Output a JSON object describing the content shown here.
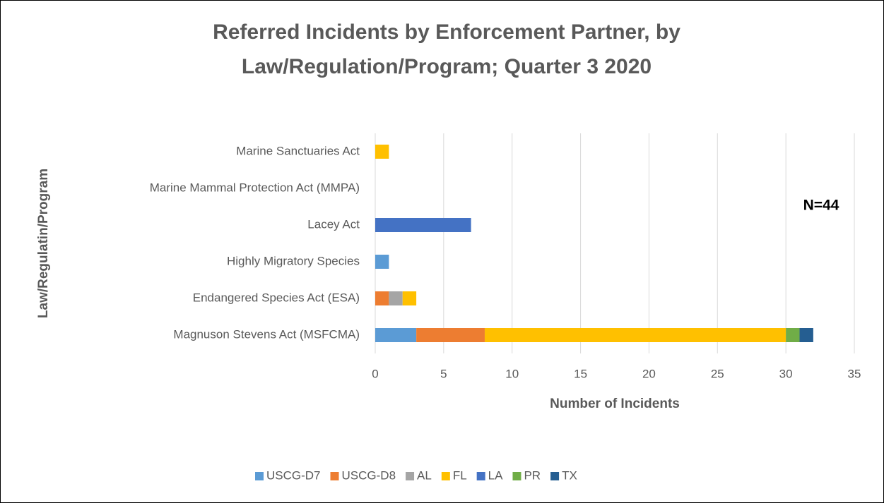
{
  "chart_data": {
    "type": "bar",
    "orientation": "horizontal",
    "stacked": true,
    "title": [
      "Referred Incidents by Enforcement Partner, by",
      "Law/Regulation/Program; Quarter 3 2020"
    ],
    "x_label": "Number of Incidents",
    "y_label": "Law/Regulatin/Program",
    "annotation": "N=44",
    "categories": [
      "Marine Sanctuaries Act",
      "Marine Mammal Protection Act (MMPA)",
      "Lacey Act",
      "Highly Migratory Species",
      "Endangered Species Act (ESA)",
      "Magnuson Stevens Act (MSFCMA)"
    ],
    "series": [
      {
        "name": "USCG-D7",
        "color": "#5b9bd5",
        "values": [
          0,
          0,
          0,
          1,
          0,
          3
        ]
      },
      {
        "name": "USCG-D8",
        "color": "#ed7d31",
        "values": [
          0,
          0,
          0,
          0,
          1,
          5
        ]
      },
      {
        "name": "AL",
        "color": "#a5a5a5",
        "values": [
          0,
          0,
          0,
          0,
          1,
          0
        ]
      },
      {
        "name": "FL",
        "color": "#ffc000",
        "values": [
          1,
          0,
          0,
          0,
          1,
          22
        ]
      },
      {
        "name": "LA",
        "color": "#4472c4",
        "values": [
          0,
          0,
          7,
          0,
          0,
          0
        ]
      },
      {
        "name": "PR",
        "color": "#70ad47",
        "values": [
          0,
          0,
          0,
          0,
          0,
          1
        ]
      },
      {
        "name": "TX",
        "color": "#255e91",
        "values": [
          0,
          0,
          0,
          0,
          0,
          1
        ]
      }
    ],
    "xlim": [
      0,
      35
    ],
    "xticks": [
      0,
      5,
      10,
      15,
      20,
      25,
      30,
      35
    ],
    "grid": true,
    "legend": "bottom"
  }
}
